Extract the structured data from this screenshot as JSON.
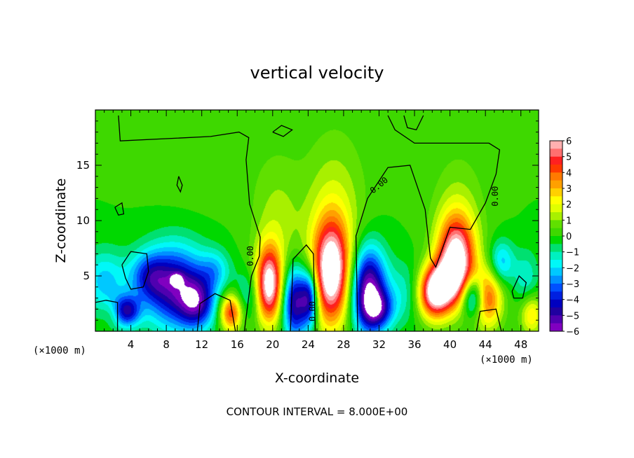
{
  "chart_data": {
    "type": "heatmap",
    "title": "vertical velocity",
    "xlabel": "X-coordinate",
    "ylabel": "Z-coordinate",
    "x_unit": "(×1000 m)",
    "xlim": [
      0,
      50
    ],
    "ylim": [
      0,
      20
    ],
    "x_ticks": [
      4,
      8,
      12,
      16,
      20,
      24,
      28,
      32,
      36,
      40,
      44,
      48
    ],
    "y_ticks": [
      5,
      10,
      15
    ],
    "colorbar": {
      "ticks": [
        6,
        5,
        4,
        3,
        2,
        1,
        0,
        -1,
        -2,
        -3,
        -4,
        -5,
        -6
      ],
      "levels": [
        {
          "from": 5.5,
          "to": 6,
          "color": "#ffb0b0"
        },
        {
          "from": 5,
          "to": 5.5,
          "color": "#ff7070"
        },
        {
          "from": 4.5,
          "to": 5,
          "color": "#ff2020"
        },
        {
          "from": 4,
          "to": 4.5,
          "color": "#ff3a00"
        },
        {
          "from": 3.5,
          "to": 4,
          "color": "#ff7a00"
        },
        {
          "from": 3,
          "to": 3.5,
          "color": "#ffa000"
        },
        {
          "from": 2.5,
          "to": 3,
          "color": "#ffd000"
        },
        {
          "from": 2,
          "to": 2.5,
          "color": "#ffff00"
        },
        {
          "from": 1.5,
          "to": 2,
          "color": "#e0ff00"
        },
        {
          "from": 1,
          "to": 1.5,
          "color": "#a8f000"
        },
        {
          "from": 0.5,
          "to": 1,
          "color": "#60e000"
        },
        {
          "from": 0,
          "to": 0.5,
          "color": "#3ed800"
        },
        {
          "from": -0.5,
          "to": 0,
          "color": "#00d800"
        },
        {
          "from": -1,
          "to": -0.5,
          "color": "#00e070"
        },
        {
          "from": -1.5,
          "to": -1,
          "color": "#00f0c0"
        },
        {
          "from": -2,
          "to": -1.5,
          "color": "#00f8f8"
        },
        {
          "from": -2.5,
          "to": -2,
          "color": "#00c8ff"
        },
        {
          "from": -3,
          "to": -2.5,
          "color": "#0090ff"
        },
        {
          "from": -3.5,
          "to": -3,
          "color": "#0050ff"
        },
        {
          "from": -4,
          "to": -3.5,
          "color": "#0020e0"
        },
        {
          "from": -4.5,
          "to": -4,
          "color": "#0000c0"
        },
        {
          "from": -5,
          "to": -4.5,
          "color": "#2000a0"
        },
        {
          "from": -5.5,
          "to": -5,
          "color": "#5000b0"
        },
        {
          "from": -6,
          "to": -5.5,
          "color": "#8000c0"
        }
      ]
    },
    "features": [
      {
        "x": 2,
        "z": 1.6,
        "w": 0.7,
        "sx": 0.8,
        "sz": 0.7
      },
      {
        "x": 3.5,
        "z": 1.8,
        "w": -4.2,
        "sx": 1.1,
        "sz": 1.0
      },
      {
        "x": 1,
        "z": 4.5,
        "w": -2.2,
        "sx": 1.8,
        "sz": 2.0
      },
      {
        "x": 9,
        "z": 4,
        "w": -5,
        "sx": 2.5,
        "sz": 2.6
      },
      {
        "x": 9.2,
        "z": 4.7,
        "w": -2,
        "sx": 0.5,
        "sz": 0.4
      },
      {
        "x": 11.5,
        "z": 2.5,
        "w": -3.5,
        "sx": 1.4,
        "sz": 1.6
      },
      {
        "x": 6,
        "z": 5,
        "w": -2.5,
        "sx": 1.5,
        "sz": 1.5
      },
      {
        "x": 13.5,
        "z": 5.5,
        "w": -1.8,
        "sx": 1.2,
        "sz": 1.3
      },
      {
        "x": 15.3,
        "z": 1.7,
        "w": 4.6,
        "sx": 0.9,
        "sz": 1.2
      },
      {
        "x": 17.2,
        "z": 3.2,
        "w": -1.5,
        "sx": 1.0,
        "sz": 1.6
      },
      {
        "x": 19.6,
        "z": 4.2,
        "w": 6.4,
        "sx": 1.05,
        "sz": 2.4
      },
      {
        "x": 20.5,
        "z": 9.5,
        "w": 1.2,
        "sx": 2.0,
        "sz": 4.5
      },
      {
        "x": 22.5,
        "z": 2.6,
        "w": -5.2,
        "sx": 1.0,
        "sz": 2.3
      },
      {
        "x": 24.2,
        "z": 3.0,
        "w": -4.8,
        "sx": 0.7,
        "sz": 1.8
      },
      {
        "x": 26.6,
        "z": 5.3,
        "w": 7.0,
        "sx": 1.5,
        "sz": 3.3
      },
      {
        "x": 27,
        "z": 11,
        "w": 1.4,
        "sx": 2.5,
        "sz": 5.0
      },
      {
        "x": 30.8,
        "z": 3.7,
        "w": -6.2,
        "sx": 1.4,
        "sz": 2.7
      },
      {
        "x": 32,
        "z": 2.0,
        "w": -3.0,
        "sx": 1.2,
        "sz": 1.2
      },
      {
        "x": 35,
        "z": 3.5,
        "w": -1.3,
        "sx": 1.5,
        "sz": 2.0
      },
      {
        "x": 38.2,
        "z": 3.3,
        "w": 5.6,
        "sx": 1.3,
        "sz": 1.6
      },
      {
        "x": 40.7,
        "z": 6.6,
        "w": 6.5,
        "sx": 1.5,
        "sz": 2.7
      },
      {
        "x": 39.5,
        "z": 4.5,
        "w": 3.0,
        "sx": 1.6,
        "sz": 1.5
      },
      {
        "x": 41,
        "z": 11,
        "w": 0.9,
        "sx": 2.2,
        "sz": 4.0
      },
      {
        "x": 42.6,
        "z": 3.1,
        "w": -4.2,
        "sx": 0.9,
        "sz": 1.3
      },
      {
        "x": 44.2,
        "z": 3.0,
        "w": 4.2,
        "sx": 1.2,
        "sz": 1.9
      },
      {
        "x": 45.8,
        "z": 6.2,
        "w": -2.4,
        "sx": 1.0,
        "sz": 1.4
      },
      {
        "x": 48.6,
        "z": 4.8,
        "w": -1.4,
        "sx": 1.0,
        "sz": 1.8
      },
      {
        "x": 49.2,
        "z": 1.5,
        "w": 2.6,
        "sx": 0.9,
        "sz": 1.3
      },
      {
        "x": 12,
        "z": 15,
        "w": 0.3,
        "sx": 4.0,
        "sz": 3.0
      }
    ],
    "zero_contours": [
      [
        [
          2.5,
          0
        ],
        [
          2.5,
          2.6
        ],
        [
          1.2,
          2.8
        ],
        [
          0,
          2.6
        ]
      ],
      [
        [
          3,
          6
        ],
        [
          4,
          7.2
        ],
        [
          5.8,
          7.0
        ],
        [
          6,
          5.4
        ],
        [
          5.4,
          4.0
        ],
        [
          4,
          3.8
        ],
        [
          3.4,
          4.8
        ],
        [
          3,
          6
        ]
      ],
      [
        [
          11.5,
          0
        ],
        [
          11.8,
          2.5
        ],
        [
          13.5,
          3.4
        ],
        [
          15.2,
          2.8
        ],
        [
          15.8,
          0
        ]
      ],
      [
        [
          16.8,
          0
        ],
        [
          17.6,
          5.0
        ],
        [
          18.5,
          6.8
        ],
        [
          18.6,
          8.5
        ],
        [
          17.4,
          11.5
        ],
        [
          17.0,
          15.5
        ],
        [
          17.3,
          17.5
        ],
        [
          16.2,
          18.0
        ],
        [
          13.0,
          17.6
        ],
        [
          2.8,
          17.2
        ],
        [
          2.6,
          19.5
        ]
      ],
      [
        [
          22.0,
          0
        ],
        [
          22.3,
          6.5
        ],
        [
          23.8,
          7.8
        ],
        [
          24.6,
          7.0
        ],
        [
          24.8,
          0
        ]
      ],
      [
        [
          29.6,
          0
        ],
        [
          29.4,
          8.6
        ],
        [
          30.7,
          12.0
        ],
        [
          33.0,
          14.8
        ],
        [
          35.5,
          15.0
        ],
        [
          37.2,
          11.0
        ],
        [
          37.8,
          6.6
        ],
        [
          38.4,
          5.8
        ],
        [
          40.0,
          9.4
        ],
        [
          42.3,
          9.2
        ],
        [
          44.0,
          11.6
        ],
        [
          45.2,
          14.2
        ],
        [
          45.6,
          16.4
        ],
        [
          44.4,
          17.0
        ],
        [
          36.0,
          17.0
        ],
        [
          33.8,
          18.2
        ],
        [
          33.0,
          19.5
        ]
      ],
      [
        [
          34.8,
          19.5
        ],
        [
          35.2,
          18.4
        ],
        [
          36.2,
          18.2
        ],
        [
          37.0,
          19.5
        ]
      ],
      [
        [
          43.0,
          0
        ],
        [
          43.4,
          1.8
        ],
        [
          45.2,
          2.0
        ],
        [
          45.8,
          0
        ]
      ],
      [
        [
          47.0,
          3.6
        ],
        [
          47.8,
          5.0
        ],
        [
          48.6,
          4.4
        ],
        [
          48.2,
          3.0
        ],
        [
          47.2,
          3.0
        ],
        [
          47.0,
          3.6
        ]
      ],
      [
        [
          9.4,
          14.0
        ],
        [
          9.8,
          13.2
        ],
        [
          9.6,
          12.6
        ],
        [
          9.2,
          13.2
        ],
        [
          9.4,
          14.0
        ]
      ],
      [
        [
          20.0,
          18.0
        ],
        [
          21.0,
          18.6
        ],
        [
          22.2,
          18.2
        ],
        [
          21.2,
          17.6
        ],
        [
          20.0,
          18.0
        ]
      ],
      [
        [
          2.2,
          11.2
        ],
        [
          3.0,
          11.6
        ],
        [
          3.2,
          10.6
        ],
        [
          2.6,
          10.5
        ],
        [
          2.2,
          11.2
        ]
      ]
    ],
    "contour_labels": [
      {
        "x": 17.8,
        "z": 6.8,
        "text": "0.00",
        "angle": -90
      },
      {
        "x": 32.2,
        "z": 13.0,
        "text": "0.00",
        "angle": -40
      },
      {
        "x": 45.4,
        "z": 12.2,
        "text": "0.00",
        "angle": -90
      },
      {
        "x": 24.8,
        "z": 1.8,
        "text": "0.00",
        "angle": -90
      }
    ],
    "annotation": "CONTOUR INTERVAL = 8.000E+00"
  }
}
